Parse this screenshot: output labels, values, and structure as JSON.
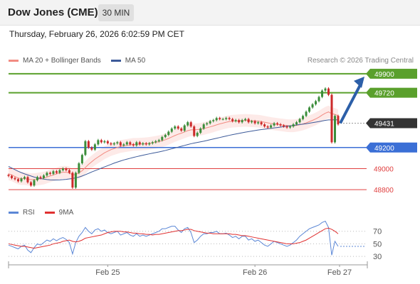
{
  "header": {
    "symbol": "Dow Jones (CME)",
    "timeframe": "30 MIN"
  },
  "datetime": "Thursday, February 26, 2026 6:02:59 PM CET",
  "legend": {
    "items": [
      {
        "label": "MA 20 + Bollinger Bands",
        "color": "#f28b82"
      },
      {
        "label": "MA 50",
        "color": "#3c5a99"
      }
    ],
    "credit": "Research © 2026 Trading Central"
  },
  "levels": [
    {
      "label": "49900",
      "kind": "resistance",
      "color": "#5aa02c"
    },
    {
      "label": "49720",
      "kind": "resistance",
      "color": "#5aa02c"
    },
    {
      "label": "49431",
      "kind": "last-price",
      "color": "#333333"
    },
    {
      "label": "49200",
      "kind": "pivot",
      "color": "#3b6fd6"
    },
    {
      "label": "49000",
      "kind": "support",
      "color": "#e04040"
    },
    {
      "label": "48800",
      "kind": "support",
      "color": "#e04040"
    }
  ],
  "rsi_legend": {
    "items": [
      {
        "label": "RSI",
        "color": "#5b87d6"
      },
      {
        "label": "9MA",
        "color": "#e03030"
      }
    ]
  },
  "rsi_axis": [
    "70",
    "50",
    "30"
  ],
  "x_axis": [
    "Feb 25",
    "Feb 26",
    "Feb 27"
  ],
  "chart_data": {
    "type": "candlestick",
    "title": "Dow Jones (CME)",
    "timeframe": "30 MIN",
    "y_range": [
      48700,
      49980
    ],
    "closes": [
      48930,
      48910,
      48900,
      48880,
      48905,
      48920,
      48870,
      48840,
      48890,
      48920,
      48910,
      48935,
      48960,
      48950,
      48975,
      48960,
      48985,
      49000,
      48985,
      48960,
      48820,
      48960,
      49050,
      49130,
      49260,
      49200,
      49180,
      49230,
      49270,
      49250,
      49260,
      49240,
      49230,
      49240,
      49250,
      49220,
      49230,
      49250,
      49230,
      49220,
      49250,
      49230,
      49240,
      49230,
      49240,
      49250,
      49260,
      49270,
      49300,
      49320,
      49350,
      49380,
      49400,
      49380,
      49360,
      49410,
      49440,
      49400,
      49310,
      49340,
      49380,
      49420,
      49430,
      49450,
      49460,
      49480,
      49470,
      49470,
      49480,
      49470,
      49450,
      49460,
      49440,
      49460,
      49470,
      49440,
      49450,
      49430,
      49440,
      49420,
      49400,
      49390,
      49410,
      49430,
      49420,
      49410,
      49400,
      49390,
      49400,
      49420,
      49440,
      49470,
      49500,
      49540,
      49580,
      49610,
      49640,
      49680,
      49740,
      49760,
      49700,
      49250,
      49500,
      49420
    ],
    "ma20": [
      48950,
      48940,
      48925,
      48910,
      48905,
      48905,
      48900,
      48895,
      48895,
      48900,
      48905,
      48910,
      48920,
      48930,
      48940,
      48950,
      48960,
      48965,
      48965,
      48960,
      48940,
      48945,
      48960,
      48980,
      49010,
      49040,
      49065,
      49090,
      49110,
      49130,
      49150,
      49165,
      49180,
      49190,
      49200,
      49210,
      49215,
      49220,
      49225,
      49230,
      49230,
      49232,
      49234,
      49236,
      49240,
      49245,
      49250,
      49256,
      49264,
      49274,
      49286,
      49300,
      49314,
      49326,
      49336,
      49348,
      49360,
      49368,
      49368,
      49370,
      49374,
      49380,
      49388,
      49396,
      49405,
      49415,
      49424,
      49432,
      49440,
      49446,
      49450,
      49452,
      49454,
      49456,
      49458,
      49456,
      49454,
      49452,
      49450,
      49446,
      49440,
      49434,
      49428,
      49424,
      49420,
      49416,
      49412,
      49408,
      49406,
      49406,
      49410,
      49416,
      49424,
      49434,
      49446,
      49458,
      49472,
      49488,
      49508,
      49526,
      49538,
      49520,
      49515,
      49500
    ],
    "ma50": [
      49020,
      49005,
      48990,
      48975,
      48962,
      48950,
      48940,
      48930,
      48920,
      48912,
      48905,
      48900,
      48896,
      48893,
      48892,
      48892,
      48893,
      48895,
      48898,
      48902,
      48906,
      48912,
      48920,
      48930,
      48942,
      48955,
      48968,
      48980,
      48992,
      49004,
      49016,
      49028,
      49040,
      49052,
      49062,
      49072,
      49082,
      49090,
      49098,
      49106,
      49113,
      49120,
      49127,
      49134,
      49140,
      49146,
      49152,
      49158,
      49165,
      49172,
      49180,
      49188,
      49196,
      49204,
      49212,
      49220,
      49228,
      49236,
      49242,
      49248,
      49254,
      49260,
      49267,
      49274,
      49281,
      49288,
      49295,
      49302,
      49309,
      49316,
      49322,
      49328,
      49334,
      49340,
      49346,
      49351,
      49356,
      49361,
      49366,
      49370,
      49374,
      49378,
      49382,
      49386,
      49390,
      49394,
      49398,
      49402,
      49406,
      49410,
      49414,
      49418,
      49422,
      49426,
      49431,
      49436,
      49441,
      49446,
      49452,
      49458,
      49462,
      49462,
      49463,
      49463
    ],
    "bb_width": 60,
    "rsi": [
      48,
      46,
      44,
      42,
      46,
      48,
      40,
      36,
      44,
      50,
      48,
      52,
      56,
      54,
      58,
      55,
      58,
      60,
      57,
      52,
      34,
      52,
      62,
      68,
      76,
      70,
      66,
      72,
      74,
      70,
      72,
      68,
      66,
      68,
      70,
      64,
      66,
      68,
      64,
      62,
      66,
      62,
      64,
      62,
      64,
      66,
      68,
      70,
      74,
      74,
      76,
      78,
      78,
      72,
      68,
      74,
      76,
      68,
      52,
      56,
      62,
      66,
      66,
      68,
      68,
      70,
      66,
      66,
      67,
      64,
      60,
      62,
      58,
      62,
      62,
      56,
      58,
      54,
      56,
      52,
      48,
      46,
      50,
      54,
      52,
      50,
      48,
      46,
      48,
      52,
      56,
      62,
      66,
      70,
      74,
      76,
      78,
      80,
      84,
      86,
      76,
      32,
      54,
      46
    ],
    "rsi_ma9": [
      50,
      49,
      48,
      47,
      46,
      46,
      45,
      44,
      43,
      44,
      45,
      46,
      47,
      48,
      50,
      51,
      52,
      54,
      55,
      56,
      54,
      53,
      54,
      56,
      59,
      60,
      61,
      62,
      63,
      64,
      66,
      68,
      69,
      70,
      70,
      70,
      69,
      69,
      68,
      67,
      67,
      66,
      66,
      65,
      65,
      64,
      65,
      65,
      66,
      67,
      68,
      69,
      70,
      71,
      71,
      72,
      73,
      73,
      71,
      70,
      69,
      68,
      67,
      67,
      66,
      66,
      66,
      66,
      66,
      66,
      65,
      65,
      64,
      63,
      63,
      62,
      61,
      60,
      59,
      58,
      57,
      56,
      55,
      54,
      53,
      52,
      51,
      50,
      50,
      50,
      51,
      52,
      54,
      56,
      59,
      62,
      65,
      68,
      71,
      74,
      75,
      73,
      70,
      66
    ],
    "rsi_ylim": [
      20,
      90
    ],
    "x_labels": [
      "Feb 25",
      "Feb 26",
      "Feb 27"
    ],
    "levels": [
      49900,
      49720,
      49431,
      49200,
      49000,
      48800
    ]
  }
}
